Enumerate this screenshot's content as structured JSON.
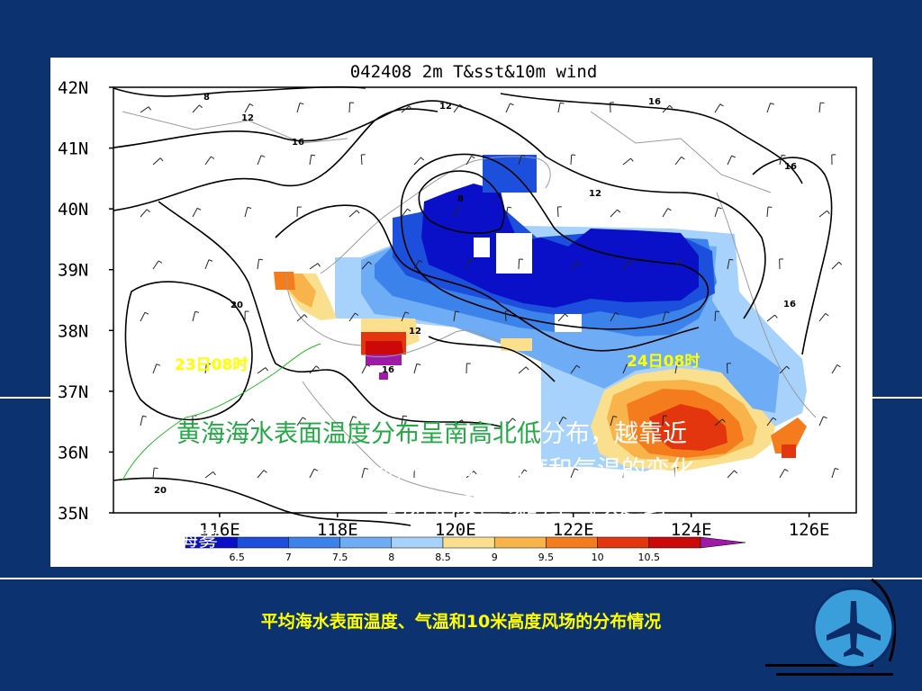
{
  "chart_data": {
    "type": "heatmap",
    "title": "042408 2m T&sst&10m wind",
    "lon_ticks": [
      "116E",
      "118E",
      "120E",
      "122E",
      "124E",
      "126E"
    ],
    "lat_ticks": [
      "42N",
      "41N",
      "40N",
      "39N",
      "38N",
      "37N",
      "36N",
      "35N"
    ],
    "lon_range": [
      114.2,
      126.8
    ],
    "lat_range": [
      35,
      42
    ],
    "colorbar_levels": [
      "6.5",
      "7",
      "7.5",
      "8",
      "8.5",
      "9",
      "9.5",
      "10",
      "10.5"
    ],
    "colorbar_colors": [
      "#0a10c8",
      "#1c50dc",
      "#3c82eb",
      "#6eacf5",
      "#a6d2fb",
      "#fae08c",
      "#f8b44a",
      "#f57c1c",
      "#e3360e",
      "#cc0808",
      "#a01aa8"
    ],
    "contour_labels": [
      "8",
      "12",
      "16",
      "12",
      "16",
      "8",
      "12",
      "16",
      "20",
      "12",
      "16",
      "16",
      "20"
    ],
    "annotations": [
      "23日08时",
      "24日08时"
    ]
  },
  "overlay": {
    "line1_green": "黄海海水表面温度",
    "line1_mid": "分布呈",
    "line1_green2": "南高北低",
    "line1_rest": "分布，越靠近",
    "line2": "两天来海水温度和气温的变化",
    "line3": "的好把暖区域的空气吹送到",
    "line4": "成海雾"
  },
  "caption": "平均海水表面温度、气温和10米高度风场的分布情况",
  "colors": {
    "background": "#0d3270",
    "caption": "#ffff00",
    "annotation": "#ffff00",
    "trajectory": "#22bb22",
    "overlay_green": "#22aa44"
  },
  "icons": [
    "airplane-icon"
  ]
}
